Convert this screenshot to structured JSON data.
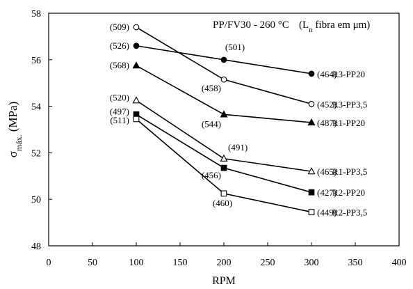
{
  "chart_data": {
    "type": "line",
    "title": "PP/FV30 - 260 °C",
    "annotation": {
      "prefix": "(L",
      "subscript": "n",
      "suffix": " fibra em μm)"
    },
    "xlabel": "RPM",
    "ylabel": {
      "main": "σ",
      "subscript": "máx.",
      "unit": " (MPa)"
    },
    "xlim": [
      0,
      400
    ],
    "ylim": [
      48,
      58
    ],
    "x_ticks": [
      "0",
      "50",
      "100",
      "150",
      "200",
      "250",
      "300",
      "350",
      "400"
    ],
    "y_ticks": [
      "48",
      "50",
      "52",
      "54",
      "56",
      "58"
    ],
    "grid": false,
    "series": [
      {
        "name": "R3-PP20",
        "marker": "circle-filled",
        "x": [
          100,
          200,
          300
        ],
        "y": [
          56.6,
          56.0,
          55.4
        ],
        "point_labels": [
          "(526)",
          "(501)",
          "(464)"
        ]
      },
      {
        "name": "R3-PP3,5",
        "marker": "circle-open",
        "x": [
          100,
          200,
          300
        ],
        "y": [
          57.4,
          55.15,
          54.1
        ],
        "point_labels": [
          "(509)",
          "(458)",
          "(452)"
        ]
      },
      {
        "name": "R1-PP20",
        "marker": "triangle-filled",
        "x": [
          100,
          200,
          300
        ],
        "y": [
          55.75,
          53.65,
          53.3
        ],
        "point_labels": [
          "(568)",
          "(544)",
          "(487)"
        ]
      },
      {
        "name": "R1-PP3,5",
        "marker": "triangle-open",
        "x": [
          100,
          200,
          300
        ],
        "y": [
          54.25,
          51.75,
          51.2
        ],
        "point_labels": [
          "(520)",
          "(491)",
          "(465)"
        ]
      },
      {
        "name": "R2-PP20",
        "marker": "square-filled",
        "x": [
          100,
          200,
          300
        ],
        "y": [
          53.65,
          51.35,
          50.3
        ],
        "point_labels": [
          "(497)",
          "(456)",
          "(427)"
        ]
      },
      {
        "name": "R2-PP3,5",
        "marker": "square-open",
        "x": [
          100,
          200,
          300
        ],
        "y": [
          53.45,
          50.25,
          49.45
        ],
        "point_labels": [
          "(511)",
          "(460)",
          "(449)"
        ]
      }
    ]
  }
}
